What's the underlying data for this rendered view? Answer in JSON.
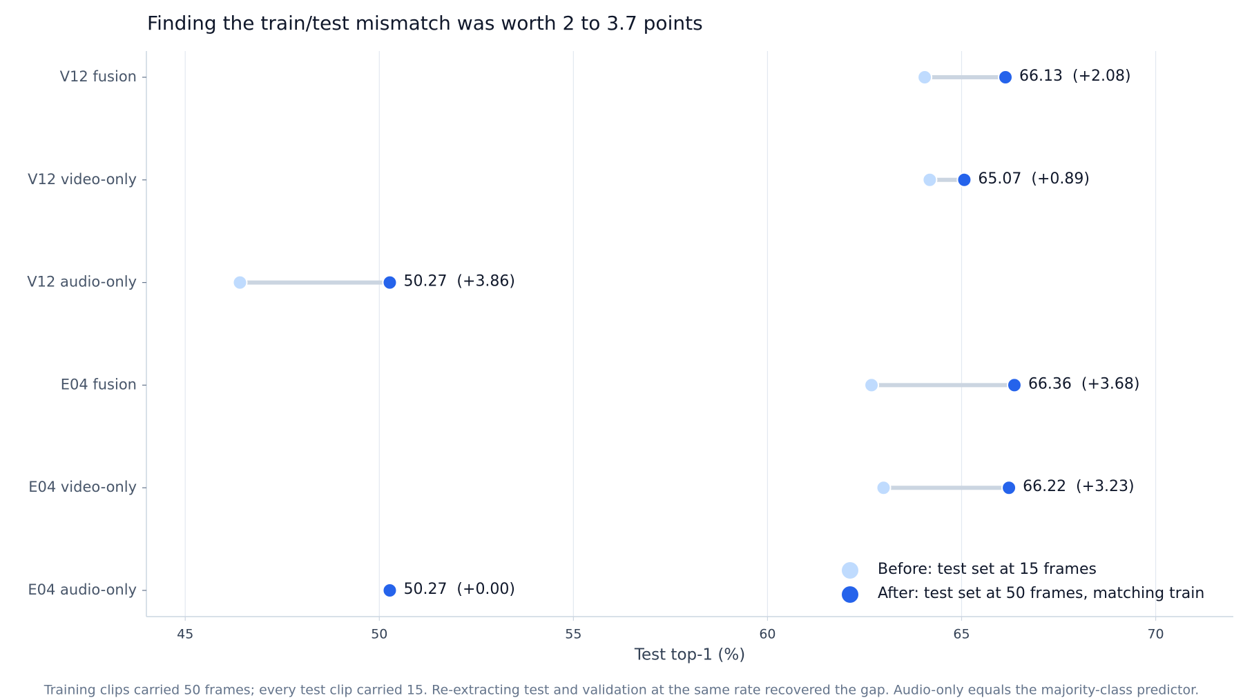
{
  "chart_data": {
    "type": "dumbbell",
    "title": "Finding the train/test mismatch was worth 2 to 3.7 points",
    "x_label": "Test top-1 (%)",
    "footnote": "Training clips carried 50 frames; every test clip carried 15. Re-extracting test and validation at the same rate recovered the gap. Audio-only equals the majority-class predictor.",
    "categories": [
      "V12 fusion",
      "V12 video-only",
      "V12 audio-only",
      "E04 fusion",
      "E04 video-only",
      "E04 audio-only"
    ],
    "series": [
      {
        "name": "Before: test set at 15 frames",
        "color": "#bfdbfe",
        "values": [
          64.05,
          64.18,
          46.41,
          62.68,
          62.99,
          50.27
        ]
      },
      {
        "name": "After: test set at 50 frames, matching train",
        "color": "#2563eb",
        "values": [
          66.13,
          65.07,
          50.27,
          66.36,
          66.22,
          50.27
        ],
        "value_labels": [
          "66.13  (+2.08)",
          "65.07  (+0.89)",
          "50.27  (+3.86)",
          "66.36  (+3.68)",
          "66.22  (+3.23)",
          "50.27  (+0.00)"
        ]
      }
    ],
    "connector_color": "#cbd5e1",
    "xlim": [
      44,
      72
    ],
    "xticks": [
      45,
      50,
      55,
      60,
      65,
      70
    ],
    "grid": true,
    "legend": "lower right"
  }
}
